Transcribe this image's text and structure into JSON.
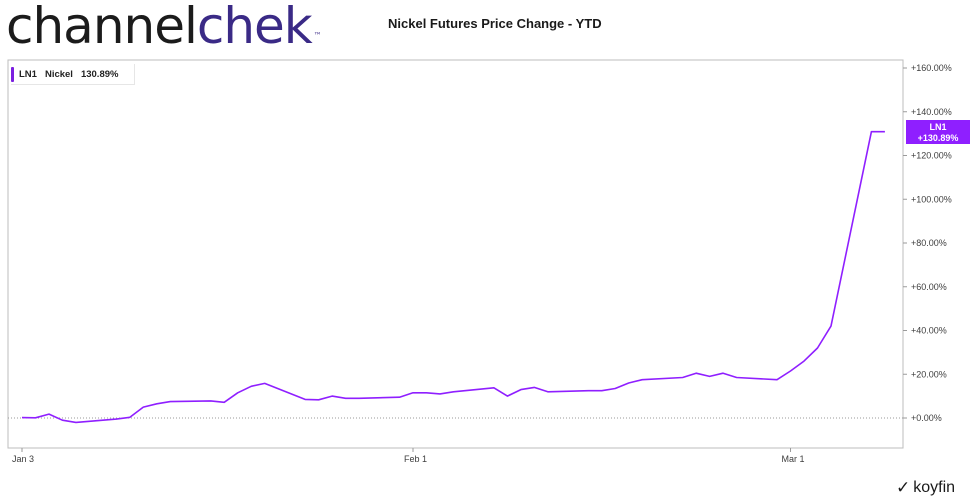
{
  "logo": {
    "part1": "channel",
    "part2": "chek",
    "tm": "™"
  },
  "title": "Nickel Futures Price Change - YTD",
  "legend": {
    "ticker": "LN1",
    "name": "Nickel",
    "value": "130.89%"
  },
  "badge": {
    "ticker": "LN1",
    "value": "+130.89%"
  },
  "watermark": {
    "icon": "koyfin-logo-icon",
    "text": "koyfin"
  },
  "colors": {
    "series": "#8f1fff",
    "logo_accent": "#3a2a86"
  },
  "chart_data": {
    "type": "line",
    "title": "Nickel Futures Price Change - YTD",
    "xlabel": "",
    "ylabel": "",
    "y_unit": "%",
    "ylim": [
      -10,
      165
    ],
    "y_ticks": [
      0,
      20,
      40,
      60,
      80,
      100,
      120,
      140,
      160
    ],
    "y_tick_labels": [
      "+0.00%",
      "+20.00%",
      "+40.00%",
      "+60.00%",
      "+80.00%",
      "+100.00%",
      "+120.00%",
      "+140.00%",
      "+160.00%"
    ],
    "x_ticks": [
      "2022-01-03",
      "2022-02-01",
      "2022-03-01"
    ],
    "x_tick_labels": [
      "Jan 3",
      "Feb 1",
      "Mar 1"
    ],
    "xlim": [
      "2022-01-01",
      "2022-03-09"
    ],
    "zero_line": "dotted",
    "legend_position": "top-left",
    "series": [
      {
        "name": "LN1",
        "x": [
          "2022-01-03",
          "2022-01-04",
          "2022-01-05",
          "2022-01-06",
          "2022-01-07",
          "2022-01-10",
          "2022-01-11",
          "2022-01-12",
          "2022-01-13",
          "2022-01-14",
          "2022-01-17",
          "2022-01-18",
          "2022-01-19",
          "2022-01-20",
          "2022-01-21",
          "2022-01-24",
          "2022-01-25",
          "2022-01-26",
          "2022-01-27",
          "2022-01-28",
          "2022-01-31",
          "2022-02-01",
          "2022-02-02",
          "2022-02-03",
          "2022-02-04",
          "2022-02-07",
          "2022-02-08",
          "2022-02-09",
          "2022-02-10",
          "2022-02-11",
          "2022-02-14",
          "2022-02-15",
          "2022-02-16",
          "2022-02-17",
          "2022-02-18",
          "2022-02-21",
          "2022-02-22",
          "2022-02-23",
          "2022-02-24",
          "2022-02-25",
          "2022-02-28",
          "2022-03-01",
          "2022-03-02",
          "2022-03-03",
          "2022-03-04",
          "2022-03-07",
          "2022-03-08"
        ],
        "values": [
          0.2,
          0.1,
          1.8,
          -1,
          -2,
          -0.5,
          0.3,
          5,
          6.5,
          7.5,
          7.8,
          7.2,
          11.5,
          14.5,
          15.8,
          8.5,
          8.3,
          10,
          9,
          9,
          9.5,
          11.5,
          11.5,
          11,
          12,
          13.8,
          10,
          13,
          14,
          12,
          12.5,
          12.5,
          13.5,
          16,
          17.5,
          18.5,
          20.5,
          19,
          20.5,
          18.5,
          17.5,
          21.5,
          26,
          32,
          42,
          130.9,
          130.9
        ]
      }
    ]
  }
}
